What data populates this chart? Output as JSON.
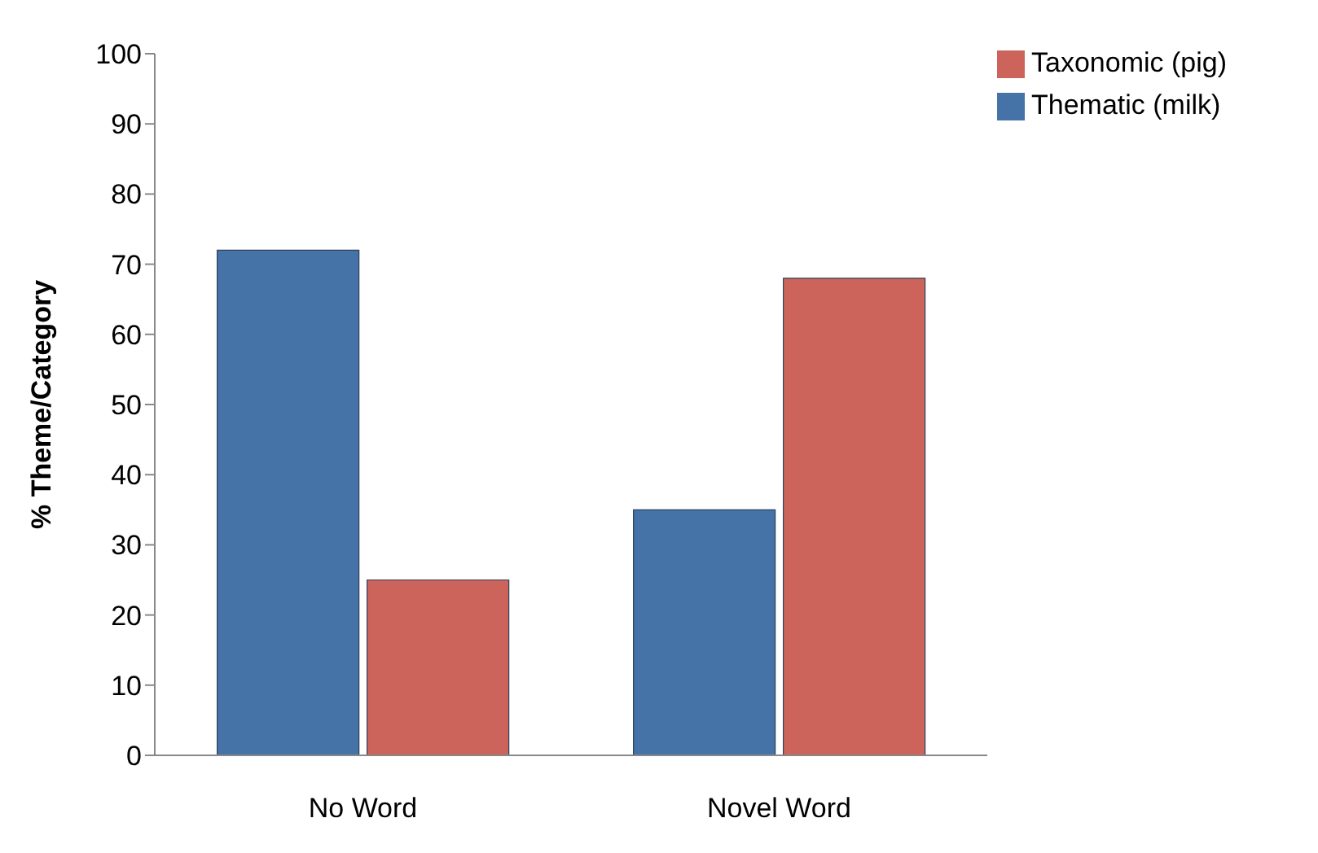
{
  "chart_data": {
    "type": "bar",
    "ylabel": "% Theme/Category",
    "categories": [
      "No Word",
      "Novel Word"
    ],
    "series": [
      {
        "name": "Thematic  (milk)",
        "color": "#4572a7",
        "values": [
          72,
          35
        ]
      },
      {
        "name": "Taxonomic  (pig)",
        "color": "#cd645b",
        "values": [
          25,
          68
        ]
      }
    ],
    "ylim": [
      0,
      100
    ],
    "yticks": [
      0,
      10,
      20,
      30,
      40,
      50,
      60,
      70,
      80,
      90,
      100
    ],
    "grid": false,
    "legend": "top right"
  }
}
